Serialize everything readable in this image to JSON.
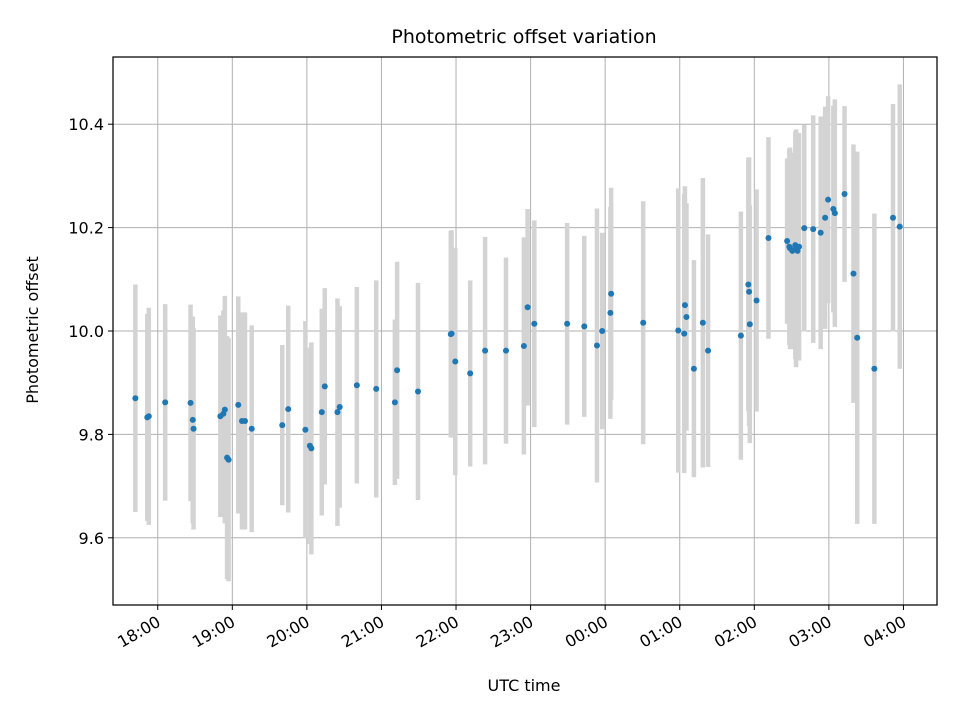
{
  "chart_data": {
    "type": "scatter",
    "title": "Photometric offset variation",
    "xlabel": "UTC time",
    "ylabel": "Photometric offset",
    "x_axis": "time (hours, UTC; values past 24 are the following day)",
    "xlim": [
      17.4,
      28.45
    ],
    "ylim": [
      9.47,
      10.53
    ],
    "grid": true,
    "x_ticks": [
      {
        "value": 18,
        "label": "18:00"
      },
      {
        "value": 19,
        "label": "19:00"
      },
      {
        "value": 20,
        "label": "20:00"
      },
      {
        "value": 21,
        "label": "21:00"
      },
      {
        "value": 22,
        "label": "22:00"
      },
      {
        "value": 23,
        "label": "23:00"
      },
      {
        "value": 24,
        "label": "00:00"
      },
      {
        "value": 25,
        "label": "01:00"
      },
      {
        "value": 26,
        "label": "02:00"
      },
      {
        "value": 27,
        "label": "03:00"
      },
      {
        "value": 28,
        "label": "04:00"
      }
    ],
    "y_ticks": [
      {
        "value": 9.6,
        "label": "9.6"
      },
      {
        "value": 9.8,
        "label": "9.8"
      },
      {
        "value": 10.0,
        "label": "10.0"
      },
      {
        "value": 10.2,
        "label": "10.2"
      },
      {
        "value": 10.4,
        "label": "10.4"
      }
    ],
    "marker_color": "#1f77b4",
    "errorbar_color": "#d3d3d3",
    "series": [
      {
        "x": [
          17.7,
          17.86,
          17.88,
          18.1,
          18.44,
          18.47,
          18.48,
          18.84,
          18.88,
          18.9,
          18.93,
          18.95,
          19.08,
          19.13,
          19.17,
          19.26,
          19.67,
          19.75,
          19.98,
          20.04,
          20.06,
          20.2,
          20.24,
          20.41,
          20.44,
          20.67,
          20.93,
          21.18,
          21.21,
          21.49,
          21.93,
          21.94,
          21.99,
          22.19,
          22.39,
          22.67,
          22.91,
          22.96,
          23.05,
          23.49,
          23.72,
          23.89,
          23.96,
          24.07,
          24.08,
          24.51,
          24.98,
          25.06,
          25.07,
          25.09,
          25.19,
          25.31,
          25.38,
          25.82,
          25.92,
          25.93,
          25.94,
          26.03,
          26.19,
          26.44,
          26.47,
          26.48,
          26.51,
          26.55,
          26.56,
          26.58,
          26.6,
          26.67,
          26.79,
          26.89,
          26.95,
          26.99,
          27.06,
          27.08,
          27.21,
          27.33,
          27.38,
          27.61,
          27.86,
          27.95
        ],
        "y": [
          9.87,
          9.833,
          9.835,
          9.862,
          9.861,
          9.828,
          9.811,
          9.835,
          9.84,
          9.848,
          9.755,
          9.751,
          9.857,
          9.826,
          9.826,
          9.811,
          9.818,
          9.849,
          9.809,
          9.778,
          9.773,
          9.843,
          9.893,
          9.843,
          9.853,
          9.895,
          9.888,
          9.862,
          9.924,
          9.883,
          9.994,
          9.995,
          9.941,
          9.918,
          9.962,
          9.962,
          9.971,
          10.046,
          10.014,
          10.014,
          10.009,
          9.972,
          10.0,
          10.035,
          10.072,
          10.016,
          10.001,
          9.995,
          10.05,
          10.027,
          9.927,
          10.016,
          9.962,
          9.991,
          10.09,
          10.076,
          10.013,
          10.059,
          10.18,
          10.174,
          10.163,
          10.16,
          10.155,
          10.166,
          10.16,
          10.155,
          10.163,
          10.199,
          10.197,
          10.19,
          10.219,
          10.254,
          10.236,
          10.228,
          10.265,
          10.111,
          9.987,
          9.927,
          10.219,
          10.202
        ],
        "err": [
          0.22,
          0.2,
          0.21,
          0.19,
          0.19,
          0.2,
          0.195,
          0.195,
          0.2,
          0.22,
          0.235,
          0.235,
          0.21,
          0.21,
          0.21,
          0.2,
          0.155,
          0.2,
          0.21,
          0.19,
          0.205,
          0.2,
          0.19,
          0.22,
          0.195,
          0.19,
          0.21,
          0.16,
          0.21,
          0.21,
          0.2,
          0.2,
          0.22,
          0.18,
          0.22,
          0.18,
          0.21,
          0.19,
          0.2,
          0.195,
          0.175,
          0.265,
          0.19,
          0.205,
          0.205,
          0.235,
          0.275,
          0.27,
          0.23,
          0.22,
          0.21,
          0.28,
          0.225,
          0.24,
          0.245,
          0.26,
          0.23,
          0.215,
          0.195,
          0.16,
          0.19,
          0.195,
          0.19,
          0.22,
          0.23,
          0.2,
          0.22,
          0.2,
          0.22,
          0.225,
          0.215,
          0.2,
          0.2,
          0.22,
          0.17,
          0.25,
          0.36,
          0.3,
          0.22,
          0.275
        ]
      }
    ]
  }
}
